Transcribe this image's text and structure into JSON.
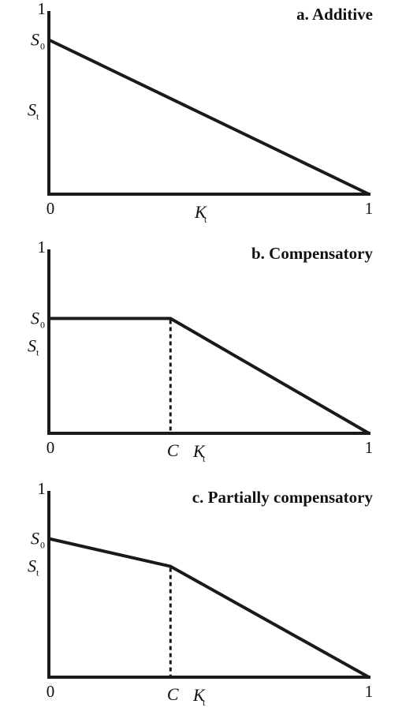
{
  "chart_data": [
    {
      "type": "line",
      "title": "a. Additive",
      "xlabel": "K",
      "xlabel_sub": "t",
      "ylabel": "S",
      "ylabel_sub": "t",
      "x_ticks": [
        "0",
        "1"
      ],
      "y_ticks": [
        "1"
      ],
      "y_marker": {
        "symbol": "S",
        "sub": "0",
        "value": 0.85
      },
      "xlim": [
        0,
        1
      ],
      "ylim": [
        0,
        1
      ],
      "series": [
        {
          "x": [
            0,
            1
          ],
          "y": [
            0.85,
            0
          ]
        }
      ]
    },
    {
      "type": "line",
      "title": "b. Compensatory",
      "xlabel": "K",
      "xlabel_sub": "t",
      "ylabel": "S",
      "ylabel_sub": "t",
      "x_ticks": [
        "0",
        "1"
      ],
      "y_ticks": [
        "1"
      ],
      "y_marker": {
        "symbol": "S",
        "sub": "0",
        "value": 0.63
      },
      "x_marker": {
        "symbol": "C",
        "value": 0.38
      },
      "xlim": [
        0,
        1
      ],
      "ylim": [
        0,
        1
      ],
      "series": [
        {
          "x": [
            0,
            0.38,
            1
          ],
          "y": [
            0.63,
            0.63,
            0
          ]
        }
      ]
    },
    {
      "type": "line",
      "title": "c. Partially compensatory",
      "xlabel": "K",
      "xlabel_sub": "t",
      "ylabel": "S",
      "ylabel_sub": "t",
      "x_ticks": [
        "0",
        "1"
      ],
      "y_ticks": [
        "1"
      ],
      "y_marker": {
        "symbol": "S",
        "sub": "0",
        "value": 0.75
      },
      "x_marker": {
        "symbol": "C",
        "value": 0.38
      },
      "xlim": [
        0,
        1
      ],
      "ylim": [
        0,
        1
      ],
      "series": [
        {
          "x": [
            0,
            0.38,
            1
          ],
          "y": [
            0.75,
            0.6,
            0
          ]
        }
      ]
    }
  ]
}
